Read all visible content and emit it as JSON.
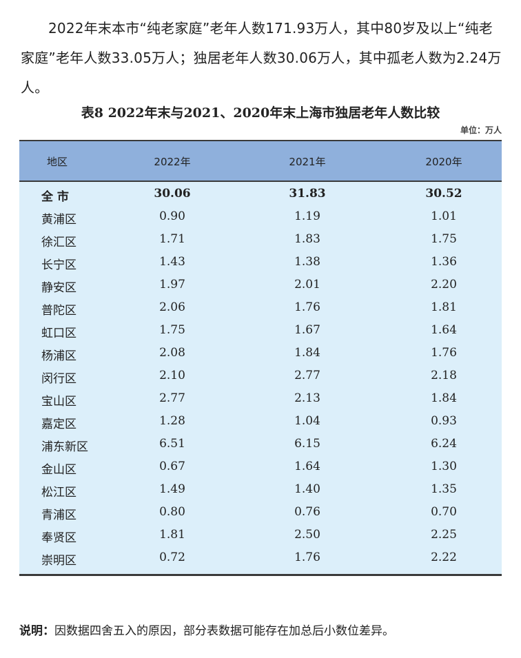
{
  "paragraph": "2022年末本市“纯老家庭”老年人数171.93万人，其中80岁及以上“纯老家庭”老年人数33.05万人；独居老年人数30.06万人，其中孤老人数为2.24万人。",
  "table": {
    "title": "表8  2022年末与2021、2020年末上海市独居老年人数比较",
    "unit": "单位：万人",
    "headers": [
      "地区",
      "2022年",
      "2021年",
      "2020年"
    ],
    "header_color": "#8fb0dc",
    "body_color": "#dcefFA",
    "rows": [
      [
        "全  市",
        "30.06",
        "31.83",
        "30.52"
      ],
      [
        "黄浦区",
        "0.90",
        "1.19",
        "1.01"
      ],
      [
        "徐汇区",
        "1.71",
        "1.83",
        "1.75"
      ],
      [
        "长宁区",
        "1.43",
        "1.38",
        "1.36"
      ],
      [
        "静安区",
        "1.97",
        "2.01",
        "2.20"
      ],
      [
        "普陀区",
        "2.06",
        "1.76",
        "1.81"
      ],
      [
        "虹口区",
        "1.75",
        "1.67",
        "1.64"
      ],
      [
        "杨浦区",
        "2.08",
        "1.84",
        "1.76"
      ],
      [
        "闵行区",
        "2.10",
        "2.77",
        "2.18"
      ],
      [
        "宝山区",
        "2.77",
        "2.13",
        "1.84"
      ],
      [
        "嘉定区",
        "1.28",
        "1.04",
        "0.93"
      ],
      [
        "浦东新区",
        "6.51",
        "6.15",
        "6.24"
      ],
      [
        "金山区",
        "0.67",
        "1.64",
        "1.30"
      ],
      [
        "松江区",
        "1.49",
        "1.40",
        "1.35"
      ],
      [
        "青浦区",
        "0.80",
        "0.76",
        "0.70"
      ],
      [
        "奉贤区",
        "1.81",
        "2.50",
        "2.25"
      ],
      [
        "崇明区",
        "0.72",
        "1.76",
        "2.22"
      ]
    ]
  },
  "note": {
    "label": "说明：",
    "text": "因数据四舍五入的原因，部分表数据可能存在加总后小数位差异。"
  }
}
